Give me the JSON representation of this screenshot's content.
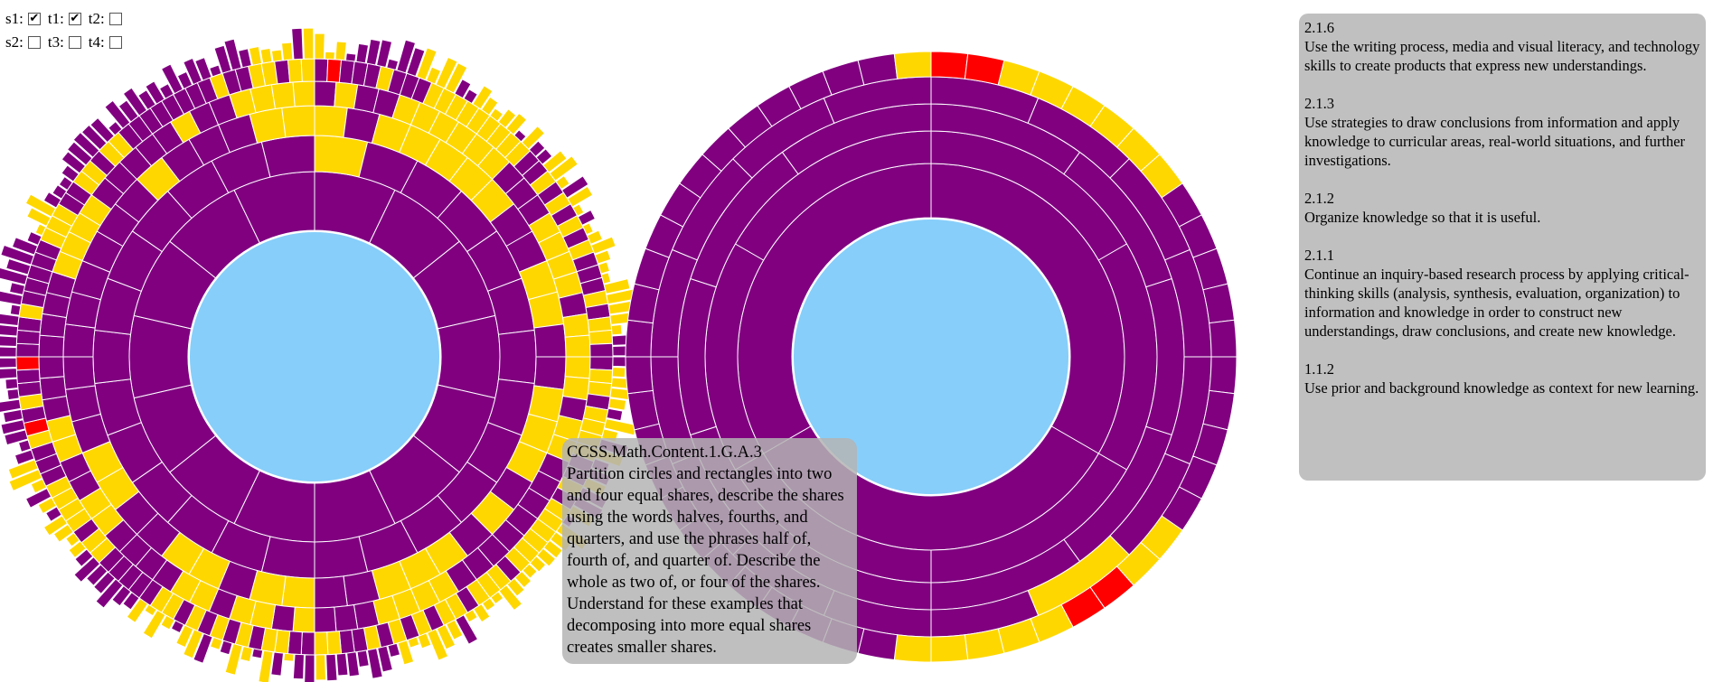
{
  "controls": [
    {
      "label": "s1:",
      "checked": true
    },
    {
      "label": "t1:",
      "checked": true
    },
    {
      "label": "t2:",
      "checked": false
    },
    {
      "label": "s2:",
      "checked": false
    },
    {
      "label": "t3:",
      "checked": false
    },
    {
      "label": "t4:",
      "checked": false
    }
  ],
  "colors": {
    "center": "#87cefa",
    "segment": "#800080",
    "highlight": "#ffd700",
    "alert": "#ff0000",
    "divider": "#ffffff",
    "tooltip_bg": "#b4b4b4",
    "panel_bg": "#c0c0c0"
  },
  "tooltip": {
    "code": "CCSS.Math.Content.1.G.A.3",
    "text": "Partition circles and rectangles into two and four equal shares, describe the shares using the words halves, fourths, and quarters, and use the phrases half of, fourth of, and quarter of. Describe the whole as two of, or four of the shares. Understand for these examples that decomposing into more equal shares creates smaller shares."
  },
  "standards": [
    {
      "code": "2.1.6",
      "text": "Use the writing process, media and visual literacy, and technology skills to create products that express new understandings."
    },
    {
      "code": "2.1.3",
      "text": "Use strategies to draw conclusions from information and apply knowledge to curricular areas, real-world situations, and further investigations."
    },
    {
      "code": "2.1.2",
      "text": "Organize knowledge so that it is useful."
    },
    {
      "code": "2.1.1",
      "text": "Continue an inquiry-based research process by applying critical-thinking skills (analysis, synthesis, evaluation, organization) to information and knowledge in order to construct new understandings, draw conclusions, and create new knowledge."
    },
    {
      "code": "1.1.2",
      "text": "Use prior and background knowledge as context for new learning."
    }
  ]
}
